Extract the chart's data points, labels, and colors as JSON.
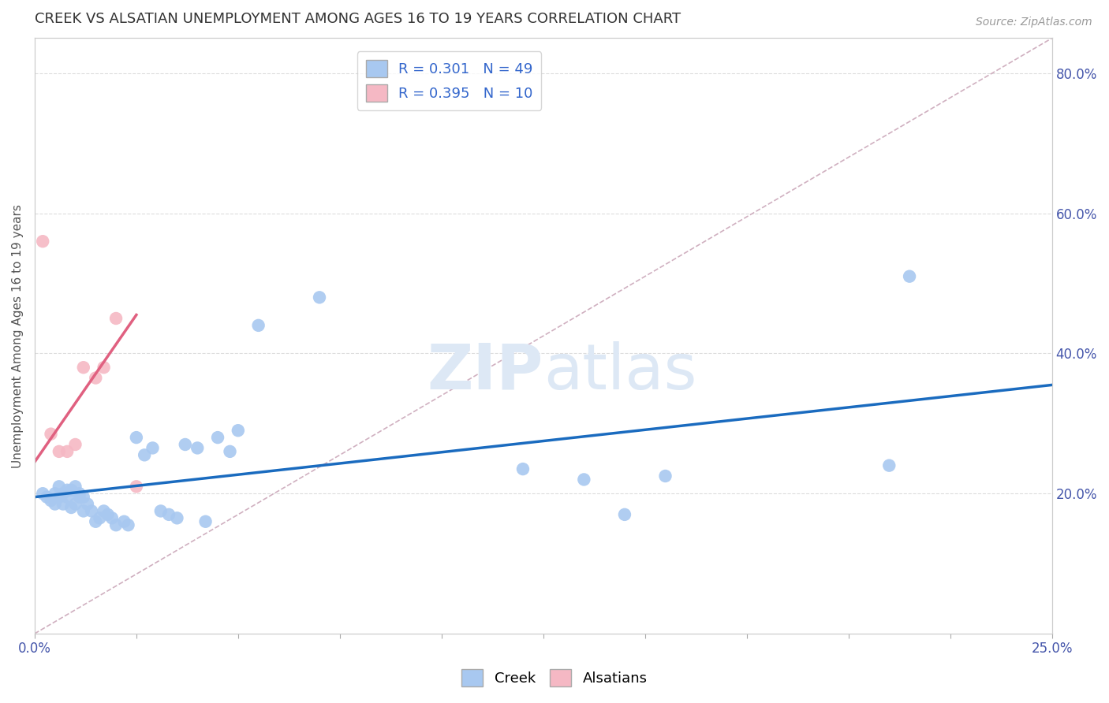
{
  "title": "CREEK VS ALSATIAN UNEMPLOYMENT AMONG AGES 16 TO 19 YEARS CORRELATION CHART",
  "source": "Source: ZipAtlas.com",
  "ylabel": "Unemployment Among Ages 16 to 19 years",
  "xlim": [
    0.0,
    0.25
  ],
  "ylim": [
    0.0,
    0.85
  ],
  "yticks_right": [
    0.2,
    0.4,
    0.6,
    0.8
  ],
  "ytick_right_labels": [
    "20.0%",
    "40.0%",
    "60.0%",
    "80.0%"
  ],
  "creek_R": 0.301,
  "creek_N": 49,
  "alsatian_R": 0.395,
  "alsatian_N": 10,
  "creek_color": "#a8c8f0",
  "creek_line_color": "#1a6bbf",
  "alsatian_color": "#f5b8c4",
  "alsatian_line_color": "#e06080",
  "diagonal_color": "#d0b0c0",
  "watermark_color": "#dde8f5",
  "background_color": "#ffffff",
  "grid_color": "#dddddd",
  "creek_line_x0": 0.0,
  "creek_line_y0": 0.195,
  "creek_line_x1": 0.25,
  "creek_line_y1": 0.355,
  "alsatian_line_x0": 0.0,
  "alsatian_line_y0": 0.245,
  "alsatian_line_x1": 0.025,
  "alsatian_line_y1": 0.455,
  "creek_scatter_x": [
    0.002,
    0.003,
    0.004,
    0.005,
    0.005,
    0.006,
    0.006,
    0.007,
    0.007,
    0.008,
    0.008,
    0.009,
    0.009,
    0.01,
    0.01,
    0.011,
    0.011,
    0.012,
    0.012,
    0.013,
    0.014,
    0.015,
    0.016,
    0.017,
    0.018,
    0.019,
    0.02,
    0.022,
    0.023,
    0.025,
    0.027,
    0.029,
    0.031,
    0.033,
    0.035,
    0.037,
    0.04,
    0.042,
    0.045,
    0.048,
    0.05,
    0.055,
    0.07,
    0.12,
    0.135,
    0.145,
    0.155,
    0.21,
    0.215
  ],
  "creek_scatter_y": [
    0.2,
    0.195,
    0.19,
    0.2,
    0.185,
    0.21,
    0.195,
    0.2,
    0.185,
    0.205,
    0.195,
    0.205,
    0.18,
    0.185,
    0.21,
    0.2,
    0.195,
    0.195,
    0.175,
    0.185,
    0.175,
    0.16,
    0.165,
    0.175,
    0.17,
    0.165,
    0.155,
    0.16,
    0.155,
    0.28,
    0.255,
    0.265,
    0.175,
    0.17,
    0.165,
    0.27,
    0.265,
    0.16,
    0.28,
    0.26,
    0.29,
    0.44,
    0.48,
    0.235,
    0.22,
    0.17,
    0.225,
    0.24,
    0.51
  ],
  "alsatian_scatter_x": [
    0.002,
    0.004,
    0.006,
    0.008,
    0.01,
    0.012,
    0.015,
    0.017,
    0.02,
    0.025
  ],
  "alsatian_scatter_y": [
    0.56,
    0.285,
    0.26,
    0.26,
    0.27,
    0.38,
    0.365,
    0.38,
    0.45,
    0.21
  ]
}
